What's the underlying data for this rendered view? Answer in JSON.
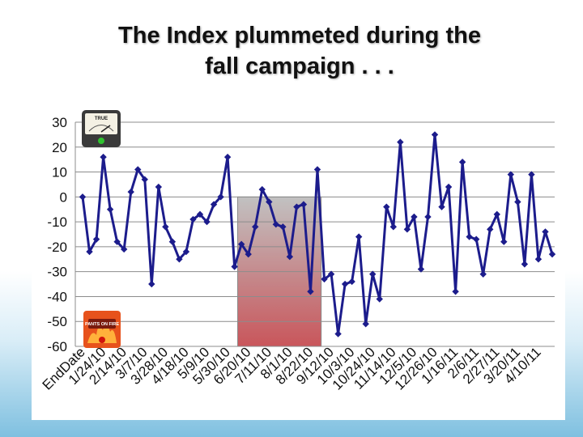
{
  "slide": {
    "title_line1": "The Index plummeted during the",
    "title_line2": "fall campaign . . ."
  },
  "icons": {
    "top": "truth-o-meter-true-icon",
    "bottom": "pants-on-fire-icon"
  },
  "colors": {
    "line": "#1c1c8c",
    "grid": "#8c8c8c",
    "highlight_top": "#b7b7b7",
    "highlight_bottom": "#c0393f"
  },
  "chart_data": {
    "type": "line",
    "ylim": [
      -60,
      30
    ],
    "yticks": [
      30,
      20,
      10,
      0,
      -10,
      -20,
      -30,
      -40,
      -50,
      -60
    ],
    "grid": true,
    "xtick_labels": [
      "EndDate",
      "1/24/10",
      "2/14/10",
      "3/7/10",
      "3/28/10",
      "4/18/10",
      "5/9/10",
      "5/30/10",
      "6/20/10",
      "7/11/10",
      "8/1/10",
      "8/22/10",
      "9/12/10",
      "10/3/10",
      "10/24/10",
      "11/14/10",
      "12/5/10",
      "12/26/10",
      "1/16/11",
      "2/6/11",
      "2/27/11",
      "3/20/11",
      "4/10/11"
    ],
    "highlight_range": {
      "start_index": 23,
      "end_index": 34,
      "y_from": 0,
      "y_to": -60
    },
    "series": [
      {
        "values": [
          0,
          -22,
          -17,
          16,
          -5,
          -18,
          -21,
          2,
          11,
          7,
          -35,
          4,
          -12,
          -18,
          -25,
          -22,
          -9,
          -7,
          -10,
          -3,
          0,
          16,
          -28,
          -19,
          -23,
          -12,
          3,
          -2,
          -11,
          -12,
          -24,
          -4,
          -3,
          -38,
          11,
          -33,
          -31,
          -55,
          -35,
          -34,
          -16,
          -51,
          -31,
          -41,
          -4,
          -12,
          22,
          -13,
          -8,
          -29,
          -8,
          25,
          -4,
          4,
          -38,
          14,
          -16,
          -17,
          -31,
          -13,
          -7,
          -18,
          9,
          -2,
          -27,
          9,
          -25,
          -14,
          -23
        ]
      }
    ]
  }
}
